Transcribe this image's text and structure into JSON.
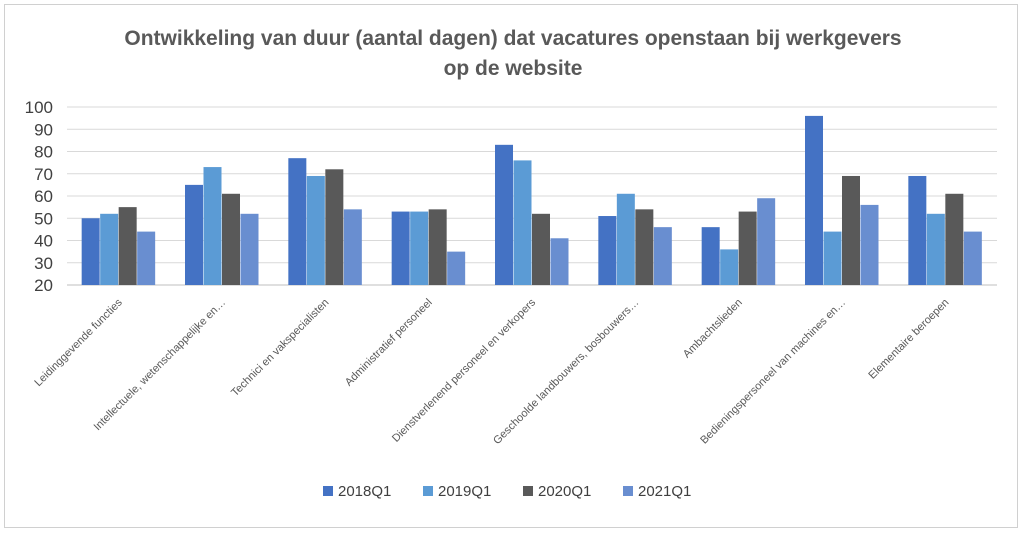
{
  "chart_data": {
    "type": "bar",
    "title": "Ontwikkeling van duur (aantal dagen) dat vacatures openstaan bij werkgevers op de website",
    "title_lines": [
      "Ontwikkeling van duur (aantal dagen) dat vacatures openstaan bij werkgevers",
      "op de website"
    ],
    "xlabel": "",
    "ylabel": "",
    "ylim": [
      20,
      100
    ],
    "yticks": [
      20,
      30,
      40,
      50,
      60,
      70,
      80,
      90,
      100
    ],
    "grid": true,
    "legend_position": "bottom",
    "categories": [
      "Leidinggevende functies",
      "Intellectuele, wetenschappelijke en…",
      "Technici en vakspecialisten",
      "Administratief personeel",
      "Dienstverlenend personeel en verkopers",
      "Geschoolde landbouwers, bosbouwers…",
      "Ambachtslieden",
      "Bedieningspersoneel van machines en…",
      "Elementaire beroepen"
    ],
    "series": [
      {
        "name": "2018Q1",
        "color": "#4472c4",
        "values": [
          50,
          65,
          77,
          53,
          83,
          51,
          46,
          96,
          69
        ]
      },
      {
        "name": "2019Q1",
        "color": "#5b9bd5",
        "values": [
          52,
          73,
          69,
          53,
          76,
          61,
          36,
          44,
          52
        ]
      },
      {
        "name": "2020Q1",
        "color": "#595959",
        "values": [
          55,
          61,
          72,
          54,
          52,
          54,
          53,
          69,
          61
        ]
      },
      {
        "name": "2021Q1",
        "color": "#698ed0",
        "values": [
          44,
          52,
          54,
          35,
          41,
          46,
          59,
          56,
          44
        ]
      }
    ]
  }
}
